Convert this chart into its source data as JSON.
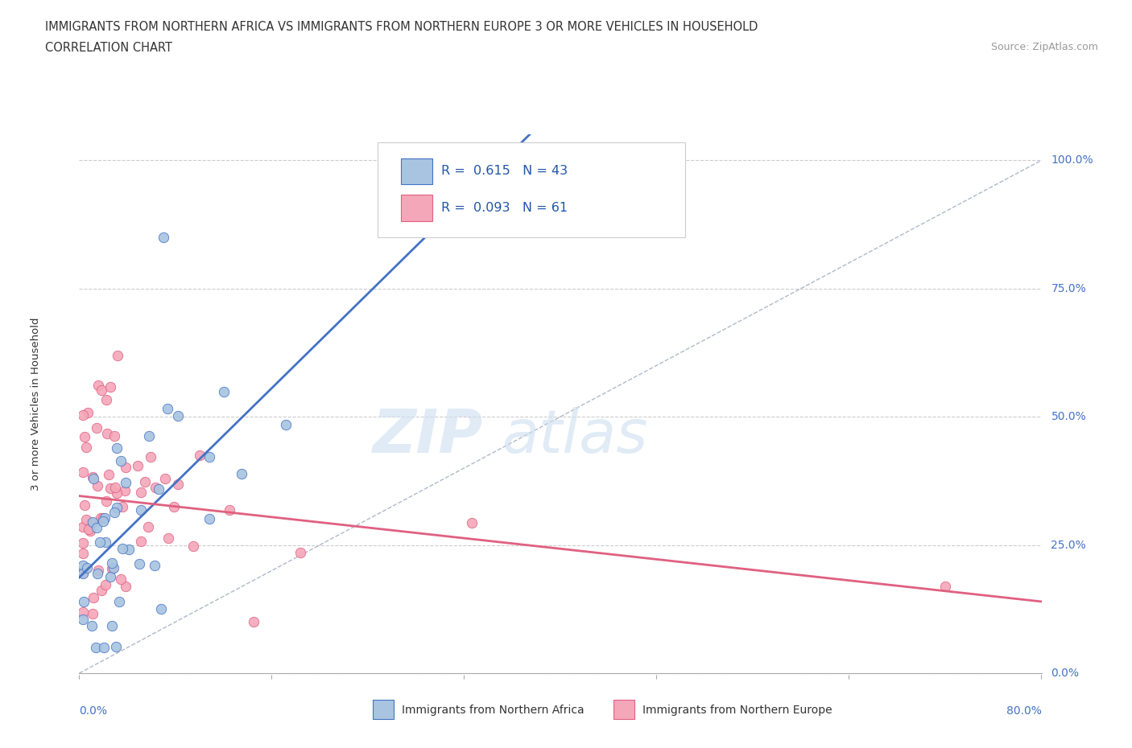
{
  "title": "IMMIGRANTS FROM NORTHERN AFRICA VS IMMIGRANTS FROM NORTHERN EUROPE 3 OR MORE VEHICLES IN HOUSEHOLD",
  "subtitle": "CORRELATION CHART",
  "source": "Source: ZipAtlas.com",
  "ylabel": "3 or more Vehicles in Household",
  "y_tick_labels": [
    "0.0%",
    "25.0%",
    "50.0%",
    "75.0%",
    "100.0%"
  ],
  "y_tick_values": [
    0,
    25,
    50,
    75,
    100
  ],
  "xlim": [
    0,
    80
  ],
  "ylim": [
    0,
    105
  ],
  "color_blue": "#a8c4e0",
  "color_pink": "#f4a7b9",
  "color_blue_line": "#4472c4",
  "color_pink_line": "#e06080",
  "color_grid": "#cccccc",
  "color_ref_line": "#b0b8c8",
  "label1": "Immigrants from Northern Africa",
  "label2": "Immigrants from Northern Europe",
  "watermark_zip": "ZIP",
  "watermark_atlas": "atlas"
}
